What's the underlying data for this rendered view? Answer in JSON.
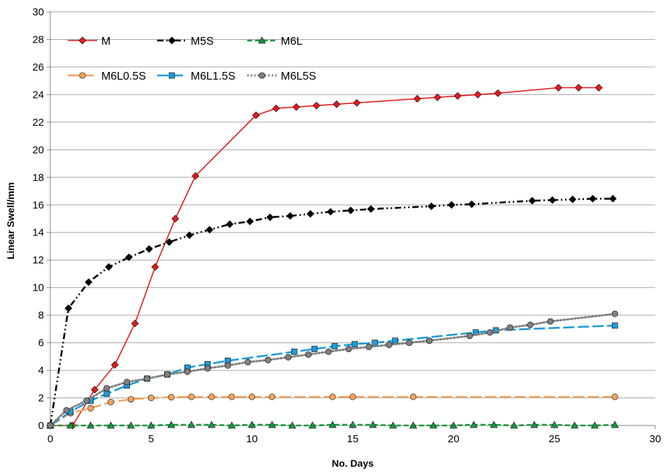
{
  "chart_data": {
    "type": "line",
    "title": "",
    "xlabel": "No. Days",
    "ylabel": "Linear Swell/mm",
    "xlim": [
      0,
      30
    ],
    "ylim": [
      0,
      30
    ],
    "xticks": [
      0,
      5,
      10,
      15,
      20,
      25,
      30
    ],
    "yticks": [
      0,
      2,
      4,
      6,
      8,
      10,
      12,
      14,
      16,
      18,
      20,
      22,
      24,
      26,
      28,
      30
    ],
    "grid": "horizontal",
    "legend": "top-left",
    "series": [
      {
        "name": "M",
        "color": "#e31a1c",
        "marker": "diamond",
        "line": "solid",
        "points": [
          [
            0,
            0
          ],
          [
            1.1,
            0
          ],
          [
            2.2,
            2.6
          ],
          [
            3.2,
            4.4
          ],
          [
            4.2,
            7.4
          ],
          [
            5.2,
            11.5
          ],
          [
            6.2,
            15.0
          ],
          [
            7.2,
            18.1
          ],
          [
            10.2,
            22.5
          ],
          [
            11.2,
            23.0
          ],
          [
            12.2,
            23.1
          ],
          [
            13.2,
            23.2
          ],
          [
            14.2,
            23.3
          ],
          [
            15.2,
            23.4
          ],
          [
            18.2,
            23.7
          ],
          [
            19.2,
            23.8
          ],
          [
            20.2,
            23.9
          ],
          [
            21.2,
            24.0
          ],
          [
            22.2,
            24.1
          ],
          [
            25.2,
            24.5
          ],
          [
            26.2,
            24.5
          ],
          [
            27.2,
            24.5
          ]
        ]
      },
      {
        "name": "M5S",
        "color": "#000000",
        "marker": "diamond",
        "line": "dashdotdot",
        "points": [
          [
            0,
            0
          ],
          [
            0.9,
            8.5
          ],
          [
            1.9,
            10.4
          ],
          [
            2.9,
            11.5
          ],
          [
            3.9,
            12.2
          ],
          [
            4.9,
            12.8
          ],
          [
            5.9,
            13.3
          ],
          [
            6.9,
            13.8
          ],
          [
            7.9,
            14.2
          ],
          [
            8.9,
            14.6
          ],
          [
            9.9,
            14.8
          ],
          [
            10.9,
            15.1
          ],
          [
            11.9,
            15.2
          ],
          [
            12.9,
            15.35
          ],
          [
            13.9,
            15.5
          ],
          [
            14.9,
            15.6
          ],
          [
            15.9,
            15.7
          ],
          [
            18.9,
            15.9
          ],
          [
            19.9,
            16.0
          ],
          [
            20.9,
            16.05
          ],
          [
            23.9,
            16.3
          ],
          [
            24.9,
            16.35
          ],
          [
            25.9,
            16.4
          ],
          [
            26.9,
            16.45
          ],
          [
            27.9,
            16.45
          ]
        ]
      },
      {
        "name": "M6L",
        "color": "#1a9641",
        "marker": "triangle",
        "line": "dashed",
        "points": [
          [
            0,
            0
          ],
          [
            1,
            0
          ],
          [
            2,
            0
          ],
          [
            3,
            0
          ],
          [
            4,
            0
          ],
          [
            5,
            0
          ],
          [
            6,
            0.05
          ],
          [
            7,
            0.05
          ],
          [
            8,
            0.05
          ],
          [
            9,
            0
          ],
          [
            10,
            0.05
          ],
          [
            11,
            0.05
          ],
          [
            12,
            0
          ],
          [
            13,
            0
          ],
          [
            14,
            0.05
          ],
          [
            15,
            0.05
          ],
          [
            16,
            0.05
          ],
          [
            17,
            0
          ],
          [
            18,
            0
          ],
          [
            19,
            0
          ],
          [
            20,
            0
          ],
          [
            21,
            0.05
          ],
          [
            22,
            0.05
          ],
          [
            23,
            0
          ],
          [
            24,
            0.05
          ],
          [
            25,
            0.05
          ],
          [
            26,
            0
          ],
          [
            27,
            0
          ],
          [
            28,
            0.05
          ]
        ]
      },
      {
        "name": "M6L0.5S",
        "color": "#f4a460",
        "marker": "circle",
        "line": "longdash",
        "points": [
          [
            0,
            0
          ],
          [
            1,
            0.9
          ],
          [
            2,
            1.25
          ],
          [
            3,
            1.7
          ],
          [
            4,
            1.9
          ],
          [
            5,
            2.0
          ],
          [
            6,
            2.05
          ],
          [
            7,
            2.08
          ],
          [
            8,
            2.08
          ],
          [
            9,
            2.08
          ],
          [
            10,
            2.08
          ],
          [
            11,
            2.08
          ],
          [
            14,
            2.08
          ],
          [
            15,
            2.08
          ],
          [
            18,
            2.08
          ],
          [
            28,
            2.08
          ]
        ]
      },
      {
        "name": "M6L1.5S",
        "color": "#1f9bd7",
        "marker": "square",
        "line": "longdash",
        "points": [
          [
            0,
            0
          ],
          [
            1,
            1.0
          ],
          [
            2,
            1.8
          ],
          [
            2.8,
            2.3
          ],
          [
            3.8,
            2.9
          ],
          [
            4.8,
            3.4
          ],
          [
            5.8,
            3.7
          ],
          [
            6.8,
            4.2
          ],
          [
            7.8,
            4.45
          ],
          [
            8.8,
            4.7
          ],
          [
            12.1,
            5.35
          ],
          [
            13.1,
            5.55
          ],
          [
            14.1,
            5.75
          ],
          [
            15.1,
            5.9
          ],
          [
            16.1,
            6.0
          ],
          [
            17.1,
            6.15
          ],
          [
            21.1,
            6.75
          ],
          [
            22.1,
            6.9
          ],
          [
            28,
            7.25
          ]
        ]
      },
      {
        "name": "M6L5S",
        "color": "#808080",
        "marker": "circle",
        "line": "dotted",
        "points": [
          [
            0,
            0
          ],
          [
            0.8,
            1.1
          ],
          [
            1.8,
            1.8
          ],
          [
            2.8,
            2.7
          ],
          [
            3.8,
            3.15
          ],
          [
            4.8,
            3.4
          ],
          [
            5.8,
            3.7
          ],
          [
            6.8,
            3.9
          ],
          [
            7.8,
            4.15
          ],
          [
            8.8,
            4.35
          ],
          [
            9.8,
            4.6
          ],
          [
            10.8,
            4.75
          ],
          [
            11.8,
            4.95
          ],
          [
            12.8,
            5.15
          ],
          [
            13.8,
            5.35
          ],
          [
            14.8,
            5.55
          ],
          [
            15.8,
            5.7
          ],
          [
            16.8,
            5.85
          ],
          [
            17.8,
            6.0
          ],
          [
            18.8,
            6.15
          ],
          [
            20.8,
            6.5
          ],
          [
            21.8,
            6.75
          ],
          [
            22.8,
            7.1
          ],
          [
            23.8,
            7.3
          ],
          [
            24.8,
            7.55
          ],
          [
            28,
            8.1
          ]
        ]
      }
    ]
  }
}
